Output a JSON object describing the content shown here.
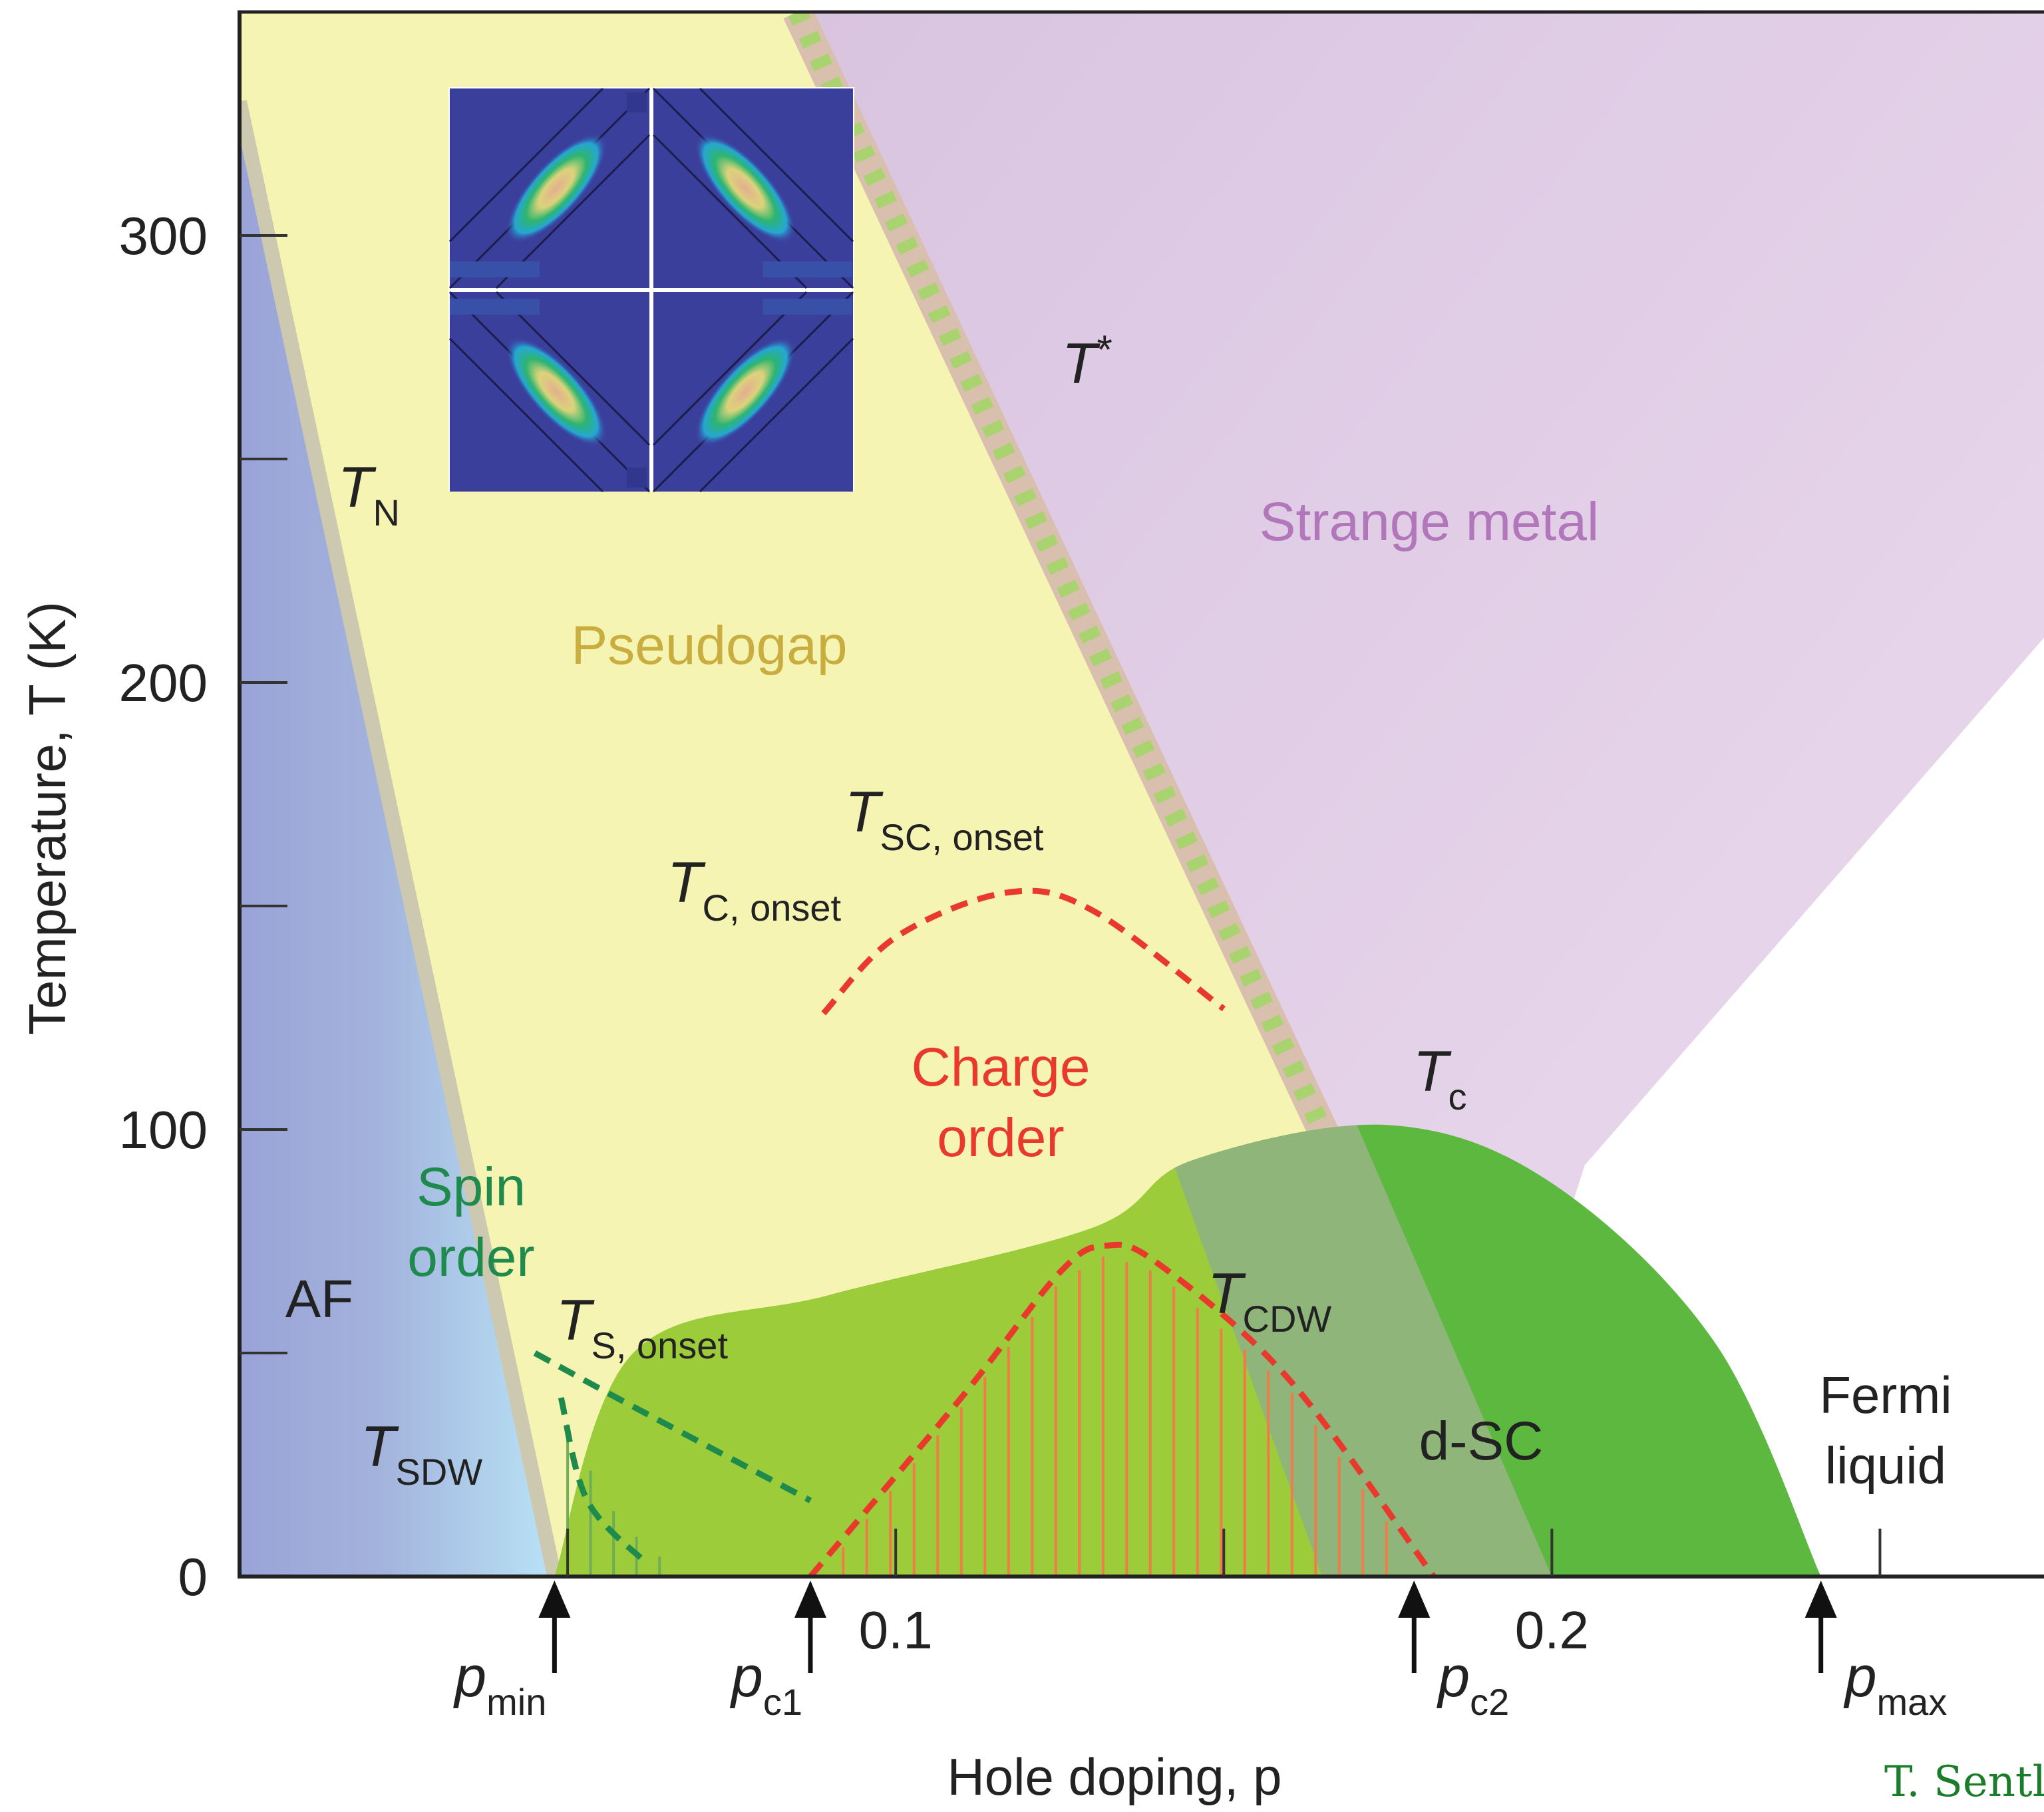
{
  "chart_data": {
    "type": "phase-diagram",
    "xlabel": "Hole doping, p",
    "ylabel": "Temperature, T (K)",
    "xlim": [
      0,
      0.275
    ],
    "ylim": [
      0,
      350
    ],
    "grid": false,
    "x_ticks_labeled": [
      {
        "value": 0.1,
        "label": "0.1"
      },
      {
        "value": 0.2,
        "label": "0.2"
      }
    ],
    "x_ticks_minor": [
      0.05,
      0.15,
      0.25
    ],
    "y_ticks": [
      {
        "value": 0,
        "label": "0"
      },
      {
        "value": 50,
        "label": ""
      },
      {
        "value": 100,
        "label": "100"
      },
      {
        "value": 150,
        "label": ""
      },
      {
        "value": 200,
        "label": "200"
      },
      {
        "value": 250,
        "label": ""
      },
      {
        "value": 300,
        "label": "300"
      }
    ],
    "critical_dopings": [
      {
        "main": "p",
        "sub": "min",
        "value": 0.048
      },
      {
        "main": "p",
        "sub": "c1",
        "value": 0.087
      },
      {
        "main": "p",
        "sub": "c2",
        "value": 0.179
      },
      {
        "main": "p",
        "sub": "max",
        "value": 0.241
      }
    ],
    "regions": [
      {
        "name": "AF",
        "color": "#9aa3d8"
      },
      {
        "name": "Pseudogap",
        "color": "#f6f4b2"
      },
      {
        "name": "Strange metal",
        "color": "#dcc7e2"
      },
      {
        "name": "d-SC",
        "color": "#5cb83f"
      },
      {
        "name": "Fermi liquid",
        "color": "#ffffff"
      }
    ],
    "labels": {
      "strange_metal": "Strange metal",
      "pseudogap": "Pseudogap",
      "charge_order": [
        "Charge",
        "order"
      ],
      "spin_order": [
        "Spin",
        "order"
      ],
      "af": "AF",
      "dsc": "d-SC",
      "fermi_liquid": [
        "Fermi",
        "liquid"
      ]
    },
    "temperature_labels": [
      {
        "main": "T",
        "sub": "N"
      },
      {
        "main": "T",
        "sup": "*"
      },
      {
        "main": "T",
        "sub": "SC, onset"
      },
      {
        "main": "T",
        "sub": "C, onset"
      },
      {
        "main": "T",
        "sub": "c"
      },
      {
        "main": "T",
        "sub": "CDW"
      },
      {
        "main": "T",
        "sub": "S, onset"
      },
      {
        "main": "T",
        "sub": "SDW"
      }
    ],
    "curves": {
      "T_N": [
        [
          0,
          330
        ],
        [
          0.048,
          0
        ]
      ],
      "T_star": [
        [
          0.085,
          350
        ],
        [
          0.165,
          100
        ]
      ],
      "T_c": [
        [
          0.048,
          0
        ],
        [
          0.06,
          50
        ],
        [
          0.09,
          63
        ],
        [
          0.13,
          78
        ],
        [
          0.145,
          93
        ],
        [
          0.175,
          101
        ],
        [
          0.2,
          88
        ],
        [
          0.225,
          52
        ],
        [
          0.241,
          0
        ]
      ],
      "T_SC_onset": [
        [
          0.089,
          126
        ],
        [
          0.1,
          143
        ],
        [
          0.117,
          153
        ],
        [
          0.13,
          149
        ],
        [
          0.15,
          127
        ]
      ],
      "T_CDW": [
        [
          0.087,
          0
        ],
        [
          0.11,
          40
        ],
        [
          0.125,
          68
        ],
        [
          0.132,
          74
        ],
        [
          0.14,
          70
        ],
        [
          0.16,
          44
        ],
        [
          0.182,
          0
        ]
      ],
      "T_S_onset": [
        [
          0.045,
          50
        ],
        [
          0.06,
          38
        ],
        [
          0.087,
          17
        ]
      ],
      "T_SDW": [
        [
          0.049,
          40
        ],
        [
          0.053,
          17
        ],
        [
          0.062,
          3
        ]
      ]
    },
    "colors": {
      "charge_order": "#e8392c",
      "spin_order": "#1e8b4d",
      "pseudogap_text": "#c9ad3f",
      "strange_metal_text": "#b277bb",
      "t_star_dash": "#a8d36f"
    }
  },
  "credit": "T. Sentl"
}
